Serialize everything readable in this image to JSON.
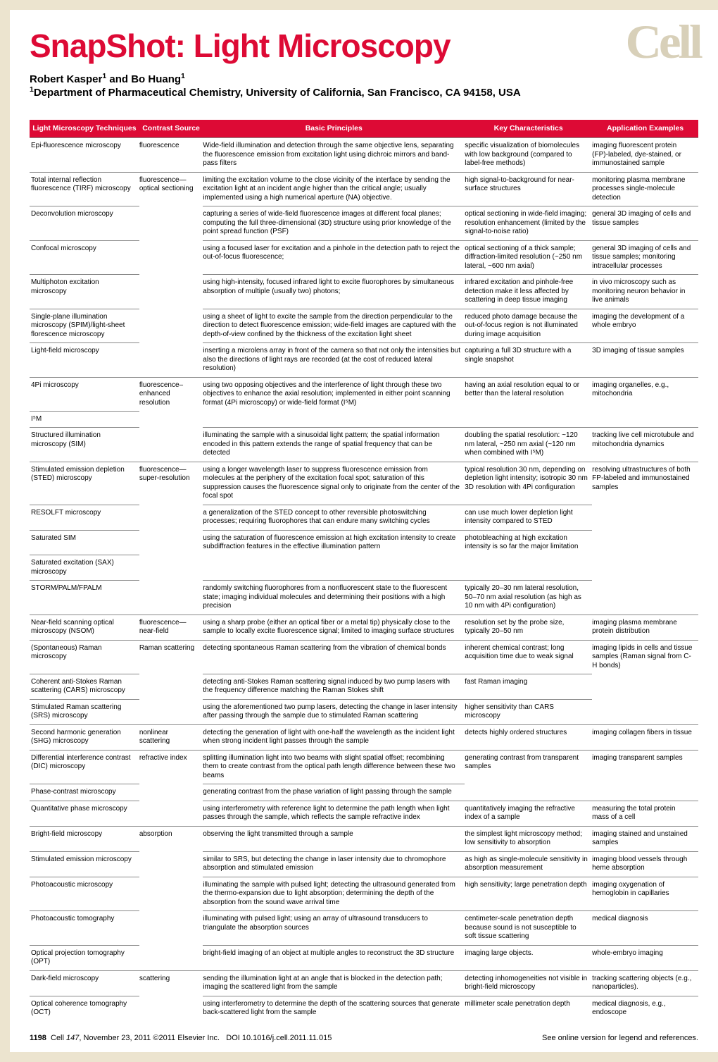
{
  "logo_text": "Cell",
  "title": "SnapShot: Light Microscopy",
  "authors_html": "Robert Kasper<sup>1</sup> and Bo Huang<sup>1</sup>",
  "affiliation_html": "<sup>1</sup>Department of Pharmaceutical Chemistry, University of California, San Francisco, CA 94158, USA",
  "colors": {
    "accent": "#dd0a35",
    "page_bg": "#ece4cf",
    "logo": "#d8d0b9",
    "rule": "#888888"
  },
  "table": {
    "headers": [
      "Light Microscopy Techniques",
      "Contrast Source",
      "Basic Principles",
      "Key Characteristics",
      "Application Examples"
    ],
    "rows": [
      {
        "bt": [
          1,
          1,
          1,
          1,
          1
        ],
        "c": [
          "Epi-fluorescence microscopy",
          "fluorescence",
          "Wide-field illumination and detection through the same objective lens, separating the fluorescence emission from excitation light using dichroic mirrors and band-pass filters",
          "specific visualization of biomolecules with low background (compared to label-free methods)",
          "imaging fluorescent protein (FP)-labeled, dye-stained, or immunostained sample"
        ]
      },
      {
        "bt": [
          1,
          1,
          1,
          1,
          1
        ],
        "c": [
          "Total internal reflection fluorescence (TIRF) microscopy",
          "fluorescence— optical sectioning",
          "limiting the excitation volume to the close vicinity of the interface by sending the excitation light at an incident angle higher than the critical angle; usually implemented using a high numerical aperture (NA) objective.",
          "high signal-to-background for near-surface structures",
          "monitoring plasma membrane processes single-molecule detection"
        ]
      },
      {
        "bt": [
          1,
          0,
          1,
          1,
          1
        ],
        "c": [
          "Deconvolution microscopy",
          "",
          "capturing a series of wide-field fluorescence images at different focal planes; computing the full three-dimensional (3D) structure using prior knowledge of the point spread function (PSF)",
          "optical sectioning in wide-field imaging; resolution enhancement (limited by the signal-to-noise ratio)",
          "general 3D imaging of cells and tissue samples"
        ]
      },
      {
        "bt": [
          1,
          0,
          1,
          1,
          1
        ],
        "c": [
          "Confocal microscopy",
          "",
          "using a focused laser for excitation and a pinhole in the detection path to reject the out-of-focus fluorescence;",
          "optical sectioning of a thick sample; diffraction-limited resolution (~250 nm lateral, ~600 nm axial)",
          "general 3D imaging of cells and tissue samples; monitoring intracellular processes"
        ]
      },
      {
        "bt": [
          1,
          0,
          1,
          1,
          1
        ],
        "c": [
          "Multiphoton excitation microscopy",
          "",
          "using high-intensity, focused infrared light to excite fluorophores by simultaneous absorption of multiple (usually two) photons;",
          "infrared excitation and pinhole-free detection make it less affected by scattering in deep tissue imaging",
          "in vivo microscopy such as monitoring neuron behavior in live animals"
        ]
      },
      {
        "bt": [
          1,
          0,
          1,
          1,
          1
        ],
        "c": [
          "Single-plane illumination microscopy (SPIM)/light-sheet florescence microscopy",
          "",
          "using a sheet of light to excite the sample from the direction perpendicular to the direction to detect fluorescence emission; wide-field images are captured with the depth-of-view confined by the thickness of the excitation light sheet",
          "reduced photo damage because the out-of-focus region is not illuminated during image acquisition",
          "imaging the development of a whole embryo"
        ]
      },
      {
        "bt": [
          1,
          0,
          1,
          1,
          1
        ],
        "c": [
          "Light-field microscopy",
          "",
          "inserting a microlens array in front of the camera so that not only the intensities but also the directions of light rays are recorded (at the cost of reduced lateral resolution)",
          "capturing a full 3D structure with a single snapshot",
          "3D imaging of tissue samples"
        ]
      },
      {
        "bt": [
          1,
          1,
          1,
          1,
          1
        ],
        "c": [
          "4Pi microscopy",
          "fluorescence– enhanced resolution",
          "using two opposing objectives and the interference of light through these two objectives to enhance the axial resolution; implemented in either point scanning format (4Pi microscopy) or wide-field format (I⁵M)",
          "having an axial resolution equal to or better than the lateral resolution",
          "imaging organelles, e.g., mitochondria"
        ]
      },
      {
        "bt": [
          1,
          0,
          0,
          0,
          0
        ],
        "c": [
          "I⁵M",
          "",
          "",
          "",
          ""
        ]
      },
      {
        "bt": [
          1,
          0,
          1,
          1,
          1
        ],
        "c": [
          "Structured illumination microscopy (SIM)",
          "",
          "illuminating the sample with a sinusoidal light pattern; the spatial information encoded in this pattern extends the range of spatial frequency that can be detected",
          "doubling the spatial resolution: ~120 nm lateral, ~250 nm axial (~120 nm when combined with I⁵M)",
          "tracking live cell microtubule and mitochondria dynamics"
        ]
      },
      {
        "bt": [
          1,
          1,
          1,
          1,
          1
        ],
        "c": [
          "Stimulated emission depletion (STED) microscopy",
          "fluorescence— super-resolution",
          "using a longer wavelength laser to suppress fluorescence emission from molecules at the periphery of the excitation focal spot; saturation of this suppression causes the fluorescence signal only to originate from the center of the focal spot",
          "typical resolution 30 nm, depending on depletion light intensity; isotropic 30 nm 3D resolution with 4Pi configuration",
          "resolving ultrastructures of both FP-labeled and immunostained samples"
        ]
      },
      {
        "bt": [
          1,
          0,
          1,
          1,
          0
        ],
        "c": [
          "RESOLFT microscopy",
          "",
          "a generalization of the STED concept to other reversible photoswitching processes; requiring fluorophores that can endure many switching cycles",
          "can use much lower depletion light intensity compared to STED",
          ""
        ]
      },
      {
        "bt": [
          1,
          0,
          1,
          1,
          0
        ],
        "c": [
          "Saturated SIM",
          "",
          "using the saturation of fluorescence emission at high excitation intensity to create subdiffraction features in the effective illumination pattern",
          "photobleaching at high excitation intensity is so far the major limitation",
          ""
        ]
      },
      {
        "bt": [
          1,
          0,
          0,
          0,
          0
        ],
        "c": [
          "Saturated excitation (SAX) microscopy",
          "",
          "",
          "",
          ""
        ]
      },
      {
        "bt": [
          1,
          0,
          1,
          1,
          0
        ],
        "c": [
          "STORM/PALM/FPALM",
          "",
          "randomly switching fluorophores from a nonfluorescent state to the fluorescent state; imaging individual molecules and determining their positions with a high precision",
          "typically 20–30 nm lateral resolution, 50–70 nm axial resolution (as high as 10 nm with 4Pi configuration)",
          ""
        ]
      },
      {
        "bt": [
          1,
          1,
          1,
          1,
          1
        ],
        "c": [
          "Near-field scanning optical microscopy (NSOM)",
          "fluorescence— near-field",
          "using a sharp probe (either an optical fiber or a metal tip) physically close to the sample to locally excite fluorescence signal; limited to imaging surface structures",
          "resolution set by the probe size, typically 20–50 nm",
          "imaging plasma membrane protein distribution"
        ]
      },
      {
        "bt": [
          1,
          1,
          1,
          1,
          1
        ],
        "c": [
          "(Spontaneous) Raman microscopy",
          "Raman scattering",
          "detecting spontaneous Raman scattering from the vibration of chemical bonds",
          "inherent chemical contrast; long acquisition time due to weak signal",
          "imaging lipids in cells and tissue samples (Raman signal from C-H bonds)"
        ]
      },
      {
        "bt": [
          1,
          0,
          1,
          1,
          0
        ],
        "c": [
          "Coherent anti-Stokes Raman scattering (CARS) microscopy",
          "",
          "detecting anti-Stokes Raman scattering signal induced by two pump lasers with the frequency difference matching the Raman Stokes shift",
          "fast Raman imaging",
          ""
        ]
      },
      {
        "bt": [
          1,
          0,
          1,
          1,
          0
        ],
        "c": [
          "Stimulated Raman scattering (SRS) microscopy",
          "",
          "using the aforementioned two pump lasers, detecting the change in laser intensity after passing through the sample due to stimulated Raman scattering",
          "higher sensitivity than CARS microscopy",
          ""
        ]
      },
      {
        "bt": [
          1,
          1,
          1,
          1,
          1
        ],
        "c": [
          "Second harmonic generation (SHG) microscopy",
          "nonlinear scattering",
          "detecting the generation of light with one-half the wavelength as the incident light when strong incident light passes through the sample",
          "detects highly ordered structures",
          "imaging collagen fibers in tissue"
        ]
      },
      {
        "bt": [
          1,
          1,
          1,
          1,
          1
        ],
        "c": [
          "Differential interference contrast (DIC) microscopy",
          "refractive index",
          "splitting illumination light into two beams with slight spatial offset; recombining them to create contrast from the optical path length difference between these two beams",
          "generating contrast from transparent samples",
          "imaging transparent samples"
        ]
      },
      {
        "bt": [
          1,
          0,
          1,
          0,
          0
        ],
        "c": [
          "Phase-contrast microscopy",
          "",
          "generating contrast from the phase variation of light passing through the sample",
          "",
          ""
        ]
      },
      {
        "bt": [
          1,
          0,
          1,
          1,
          1
        ],
        "c": [
          "Quantitative phase microscopy",
          "",
          "using interferometry with reference light to determine the path length when light passes through the sample, which reflects the sample refractive index",
          "quantitatively imaging the refractive index of a sample",
          "measuring the total protein mass of a cell"
        ]
      },
      {
        "bt": [
          1,
          1,
          1,
          1,
          1
        ],
        "c": [
          "Bright-field microscopy",
          "absorption",
          "observing the light transmitted through a sample",
          "the simplest light microscopy method; low sensitivity to absorption",
          "imaging stained and unstained samples"
        ]
      },
      {
        "bt": [
          1,
          0,
          1,
          1,
          1
        ],
        "c": [
          "Stimulated emission microscopy",
          "",
          "similar to SRS, but detecting the change in laser intensity due to chromophore absorption and stimulated emission",
          "as high as single-molecule sensitivity in absorption measurement",
          "imaging blood vessels through heme absorption"
        ]
      },
      {
        "bt": [
          1,
          0,
          1,
          1,
          1
        ],
        "c": [
          "Photoacoustic microscopy",
          "",
          "illuminating the sample with pulsed light; detecting the ultrasound generated from the thermo-expansion due to light absorption; determining the depth of the absorption from the sound wave arrival time",
          "high sensitivity; large penetration depth",
          "imaging oxygenation of hemoglobin in capillaries"
        ]
      },
      {
        "bt": [
          1,
          0,
          1,
          1,
          1
        ],
        "c": [
          "Photoacoustic tomography",
          "",
          "illuminating with pulsed light; using an array of ultrasound transducers to triangulate the absorption sources",
          "centimeter-scale penetration depth because sound is not susceptible to soft tissue scattering",
          "medical diagnosis"
        ]
      },
      {
        "bt": [
          1,
          0,
          1,
          1,
          1
        ],
        "c": [
          "Optical projection tomography (OPT)",
          "",
          "bright-field imaging of an object at multiple angles to reconstruct the 3D structure",
          "imaging large objects.",
          "whole-embryo imaging"
        ]
      },
      {
        "bt": [
          1,
          1,
          1,
          1,
          1
        ],
        "c": [
          "Dark-field microscopy",
          "scattering",
          "sending the illumination light at an angle that is blocked in the detection path; imaging the scattered light from the sample",
          "detecting inhomogeneities not visible in bright-field microscopy",
          "tracking scattering objects (e.g., nanoparticles)."
        ]
      },
      {
        "bt": [
          1,
          0,
          1,
          1,
          1
        ],
        "c": [
          "Optical coherence tomography (OCT)",
          "",
          "using interferometry to determine the depth of the scattering sources that generate back-scattered light from the sample",
          "millimeter scale penetration depth",
          "medical diagnosis, e.g., endoscope"
        ]
      }
    ]
  },
  "footer": {
    "page": "1198",
    "journal": "Cell",
    "volume": "147",
    "date": "November 23, 2011",
    "copyright": "©2011 Elsevier Inc.",
    "doi": "DOI 10.1016/j.cell.2011.11.015",
    "right": "See online version for legend and references."
  }
}
